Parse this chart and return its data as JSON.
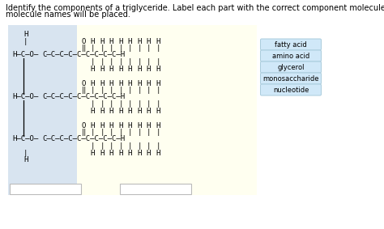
{
  "title_line1": "Identify the components of a triglyceride. Label each part with the correct component molecule. Only two",
  "title_line2": "molecule names will be placed.",
  "title_fontsize": 7.0,
  "bg_color": "#ffffff",
  "glycerol_bg": "#d8e4f0",
  "fatty_acid_bg": "#fffff0",
  "label_bg": "#d0e8f8",
  "label_border": "#aaccdd",
  "labels": [
    "fatty acid",
    "amino acid",
    "glycerol",
    "monosaccharide",
    "nucleotide"
  ],
  "fig_w": 4.74,
  "fig_h": 2.83,
  "dpi": 100
}
